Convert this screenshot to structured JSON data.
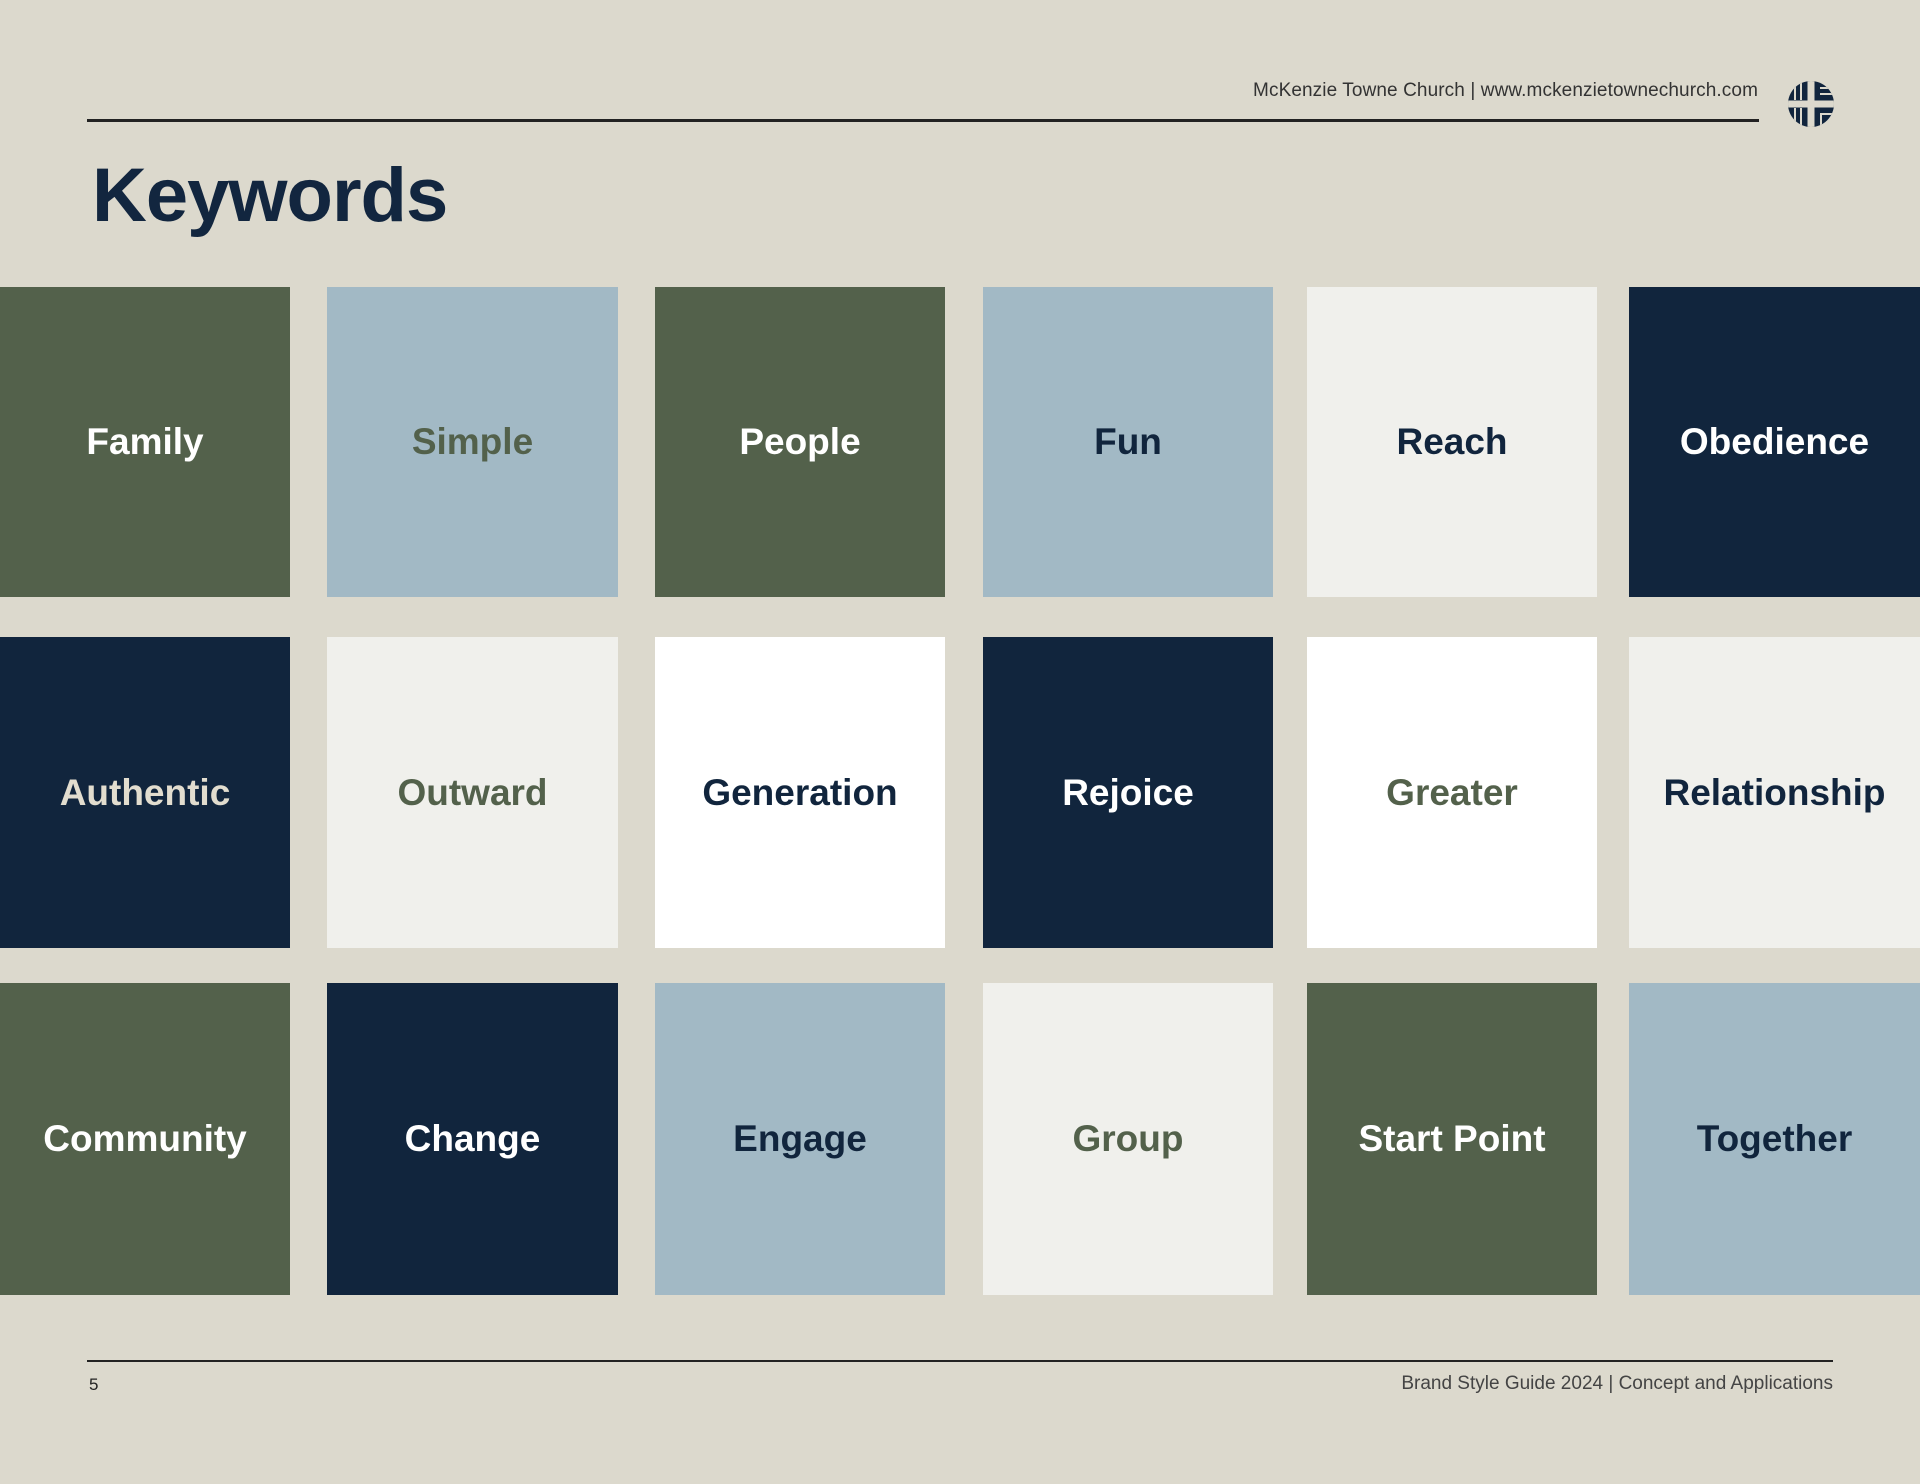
{
  "header": {
    "text": "McKenzie Towne Church |  www.mckenzietownechurch.com",
    "logo_icon": "cross-emblem-icon"
  },
  "title": "Keywords",
  "colors": {
    "background": "#dcd9cd",
    "green": "#53614b",
    "blue": "#a2b9c5",
    "navy": "#11253d",
    "offwhite": "#f0f0ec",
    "white": "#ffffff"
  },
  "tiles": [
    {
      "label": "Family",
      "bg": "#53614b",
      "fg": "#ffffff"
    },
    {
      "label": "Simple",
      "bg": "#a2b9c5",
      "fg": "#53614b"
    },
    {
      "label": "People",
      "bg": "#53614b",
      "fg": "#ffffff"
    },
    {
      "label": "Fun",
      "bg": "#a2b9c5",
      "fg": "#11253d"
    },
    {
      "label": "Reach",
      "bg": "#f0f0ec",
      "fg": "#11253d"
    },
    {
      "label": "Obedience",
      "bg": "#11253d",
      "fg": "#ffffff"
    },
    {
      "label": "Authentic",
      "bg": "#11253d",
      "fg": "#e2ddcf"
    },
    {
      "label": "Outward",
      "bg": "#f0f0ec",
      "fg": "#53614b"
    },
    {
      "label": "Generation",
      "bg": "#ffffff",
      "fg": "#11253d"
    },
    {
      "label": "Rejoice",
      "bg": "#11253d",
      "fg": "#ffffff"
    },
    {
      "label": "Greater",
      "bg": "#ffffff",
      "fg": "#53614b"
    },
    {
      "label": "Relationship",
      "bg": "#f0f0ec",
      "fg": "#11253d"
    },
    {
      "label": "Community",
      "bg": "#53614b",
      "fg": "#ffffff"
    },
    {
      "label": "Change",
      "bg": "#11253d",
      "fg": "#ffffff"
    },
    {
      "label": "Engage",
      "bg": "#a2b9c5",
      "fg": "#11253d"
    },
    {
      "label": "Group",
      "bg": "#f0f0ec",
      "fg": "#53614b"
    },
    {
      "label": "Start Point",
      "bg": "#53614b",
      "fg": "#ffffff"
    },
    {
      "label": "Together",
      "bg": "#a2b9c5",
      "fg": "#11253d"
    }
  ],
  "footer": {
    "page_number": "5",
    "text": "Brand Style Guide 2024 | Concept and Applications"
  }
}
